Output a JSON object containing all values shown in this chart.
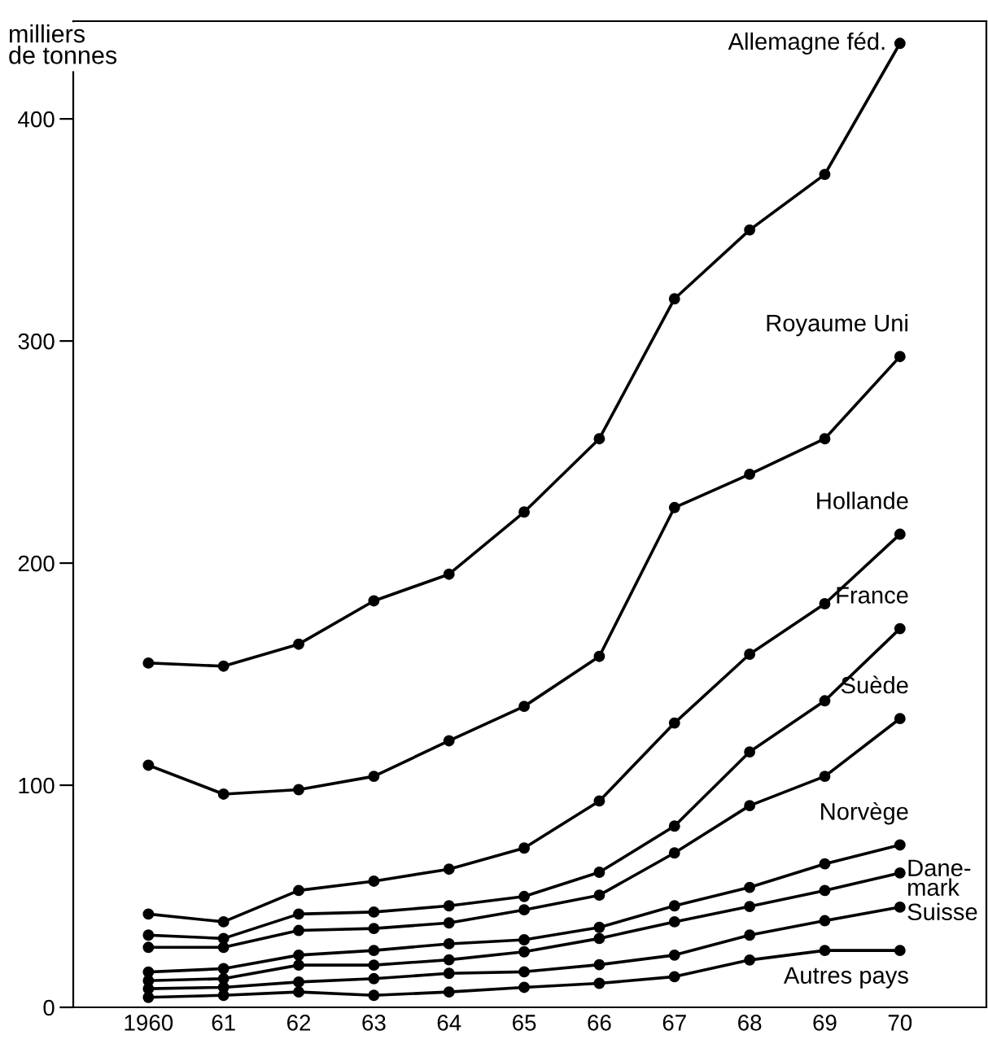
{
  "chart_data": {
    "type": "line",
    "ylabel": "milliers\nde tonnes",
    "x": [
      1960,
      1961,
      1962,
      1963,
      1964,
      1965,
      1966,
      1967,
      1968,
      1969,
      1970
    ],
    "xlim": [
      1959,
      1971.15
    ],
    "xticks": [
      1960,
      {
        "value": 1961,
        "label": "61"
      },
      {
        "value": 1962,
        "label": "62"
      },
      {
        "value": 1963,
        "label": "63"
      },
      {
        "value": 1964,
        "label": "64"
      },
      {
        "value": 1965,
        "label": "65"
      },
      {
        "value": 1966,
        "label": "66"
      },
      {
        "value": 1967,
        "label": "67"
      },
      {
        "value": 1968,
        "label": "68"
      },
      {
        "value": 1969,
        "label": "69"
      },
      {
        "value": 1970,
        "label": "70"
      }
    ],
    "ylim": [
      0,
      444
    ],
    "yticks": [
      0,
      100,
      200,
      300,
      400
    ],
    "grid": false,
    "legend": false,
    "marker": "circle",
    "line_style": "solid",
    "series": [
      {
        "name": "Allemagne féd.",
        "color": "#000000",
        "values": [
          155,
          153.6,
          163.5,
          183,
          195,
          223,
          256,
          319,
          350,
          375,
          434
        ]
      },
      {
        "name": "Royaume Uni",
        "color": "#000000",
        "values": [
          109,
          96,
          98,
          104,
          120,
          135.5,
          158,
          225,
          240,
          256,
          293
        ]
      },
      {
        "name": "Hollande",
        "color": "#000000",
        "values": [
          42,
          38.5,
          52.6,
          56.8,
          62.2,
          71.7,
          92.9,
          128,
          159,
          181.7,
          213
        ]
      },
      {
        "name": "France",
        "color": "#000000",
        "values": [
          32.5,
          31,
          42,
          42.9,
          45.7,
          49.9,
          60.8,
          81.6,
          115,
          138,
          170.5
        ]
      },
      {
        "name": "Suède",
        "color": "#000000",
        "values": [
          27,
          27,
          34.6,
          35.5,
          38,
          43.9,
          50.5,
          69.5,
          90.8,
          104,
          130
        ]
      },
      {
        "name": "Norvège",
        "color": "#000000",
        "values": [
          15.9,
          17.4,
          23.5,
          25.6,
          28.6,
          30.4,
          36,
          45.7,
          54,
          64.6,
          73.1
        ]
      },
      {
        "name": "Dane-\nmark",
        "color": "#000000",
        "values": [
          12,
          12.9,
          19,
          19,
          21.4,
          25,
          31,
          38.5,
          45.4,
          52.6,
          60.5
        ]
      },
      {
        "name": "Suisse",
        "color": "#000000",
        "values": [
          8.4,
          9,
          11.4,
          12.9,
          15.3,
          16,
          19.2,
          23.5,
          32.5,
          39,
          45.1
        ]
      },
      {
        "name": "Autres pays",
        "color": "#000000",
        "values": [
          4.5,
          5.4,
          6.9,
          5.4,
          6.9,
          9,
          10.8,
          13.8,
          21.3,
          25.6,
          25.6
        ]
      }
    ]
  }
}
